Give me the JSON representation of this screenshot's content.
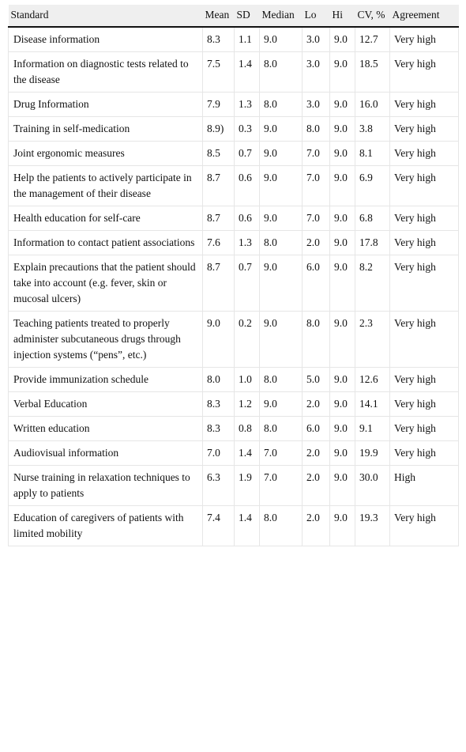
{
  "table": {
    "headers": {
      "standard": "Standard",
      "mean": "Mean",
      "sd": "SD",
      "median": "Median",
      "lo": "Lo",
      "hi": "Hi",
      "cv": "CV, %",
      "agreement": "Agreement"
    },
    "rows": [
      {
        "standard": "Disease information",
        "mean": "8.3",
        "sd": "1.1",
        "median": "9.0",
        "lo": "3.0",
        "hi": "9.0",
        "cv": "12.7",
        "agreement": "Very high"
      },
      {
        "standard": "Information on diagnostic tests related to the disease",
        "mean": "7.5",
        "sd": "1.4",
        "median": "8.0",
        "lo": "3.0",
        "hi": "9.0",
        "cv": "18.5",
        "agreement": "Very high"
      },
      {
        "standard": "Drug Information",
        "mean": "7.9",
        "sd": "1.3",
        "median": "8.0",
        "lo": "3.0",
        "hi": "9.0",
        "cv": "16.0",
        "agreement": "Very high"
      },
      {
        "standard": "Training in self-medication",
        "mean": "8.9)",
        "sd": "0.3",
        "median": "9.0",
        "lo": "8.0",
        "hi": "9.0",
        "cv": "3.8",
        "agreement": "Very high"
      },
      {
        "standard": "Joint ergonomic measures",
        "mean": "8.5",
        "sd": "0.7",
        "median": "9.0",
        "lo": "7.0",
        "hi": "9.0",
        "cv": "8.1",
        "agreement": "Very high"
      },
      {
        "standard": "Help the patients to actively participate in the management of their disease",
        "mean": "8.7",
        "sd": "0.6",
        "median": "9.0",
        "lo": "7.0",
        "hi": "9.0",
        "cv": "6.9",
        "agreement": "Very high"
      },
      {
        "standard": "Health education for self-care",
        "mean": "8.7",
        "sd": "0.6",
        "median": "9.0",
        "lo": "7.0",
        "hi": "9.0",
        "cv": "6.8",
        "agreement": "Very high"
      },
      {
        "standard": "Information to contact patient associations",
        "mean": "7.6",
        "sd": "1.3",
        "median": "8.0",
        "lo": "2.0",
        "hi": "9.0",
        "cv": "17.8",
        "agreement": "Very high"
      },
      {
        "standard": "Explain precautions that the patient should take into account (e.g. fever, skin or mucosal ulcers)",
        "mean": "8.7",
        "sd": "0.7",
        "median": "9.0",
        "lo": "6.0",
        "hi": "9.0",
        "cv": "8.2",
        "agreement": "Very high"
      },
      {
        "standard": "Teaching patients treated to properly administer subcutaneous drugs through injection systems (“pens”, etc.)",
        "mean": "9.0",
        "sd": "0.2",
        "median": "9.0",
        "lo": "8.0",
        "hi": "9.0",
        "cv": "2.3",
        "agreement": "Very high"
      },
      {
        "standard": "Provide immunization schedule",
        "mean": "8.0",
        "sd": "1.0",
        "median": "8.0",
        "lo": "5.0",
        "hi": "9.0",
        "cv": "12.6",
        "agreement": "Very high"
      },
      {
        "standard": "Verbal Education",
        "mean": "8.3",
        "sd": "1.2",
        "median": "9.0",
        "lo": "2.0",
        "hi": "9.0",
        "cv": "14.1",
        "agreement": "Very high"
      },
      {
        "standard": "Written education",
        "mean": "8.3",
        "sd": "0.8",
        "median": "8.0",
        "lo": "6.0",
        "hi": "9.0",
        "cv": "9.1",
        "agreement": "Very high"
      },
      {
        "standard": "Audiovisual information",
        "mean": "7.0",
        "sd": "1.4",
        "median": "7.0",
        "lo": "2.0",
        "hi": "9.0",
        "cv": "19.9",
        "agreement": "Very high"
      },
      {
        "standard": "Nurse training in relaxation techniques to apply to patients",
        "mean": "6.3",
        "sd": "1.9",
        "median": "7.0",
        "lo": "2.0",
        "hi": "9.0",
        "cv": "30.0",
        "agreement": "High"
      },
      {
        "standard": "Education of caregivers of patients with limited mobility",
        "mean": "7.4",
        "sd": "1.4",
        "median": "8.0",
        "lo": "2.0",
        "hi": "9.0",
        "cv": "19.3",
        "agreement": "Very high"
      }
    ]
  }
}
